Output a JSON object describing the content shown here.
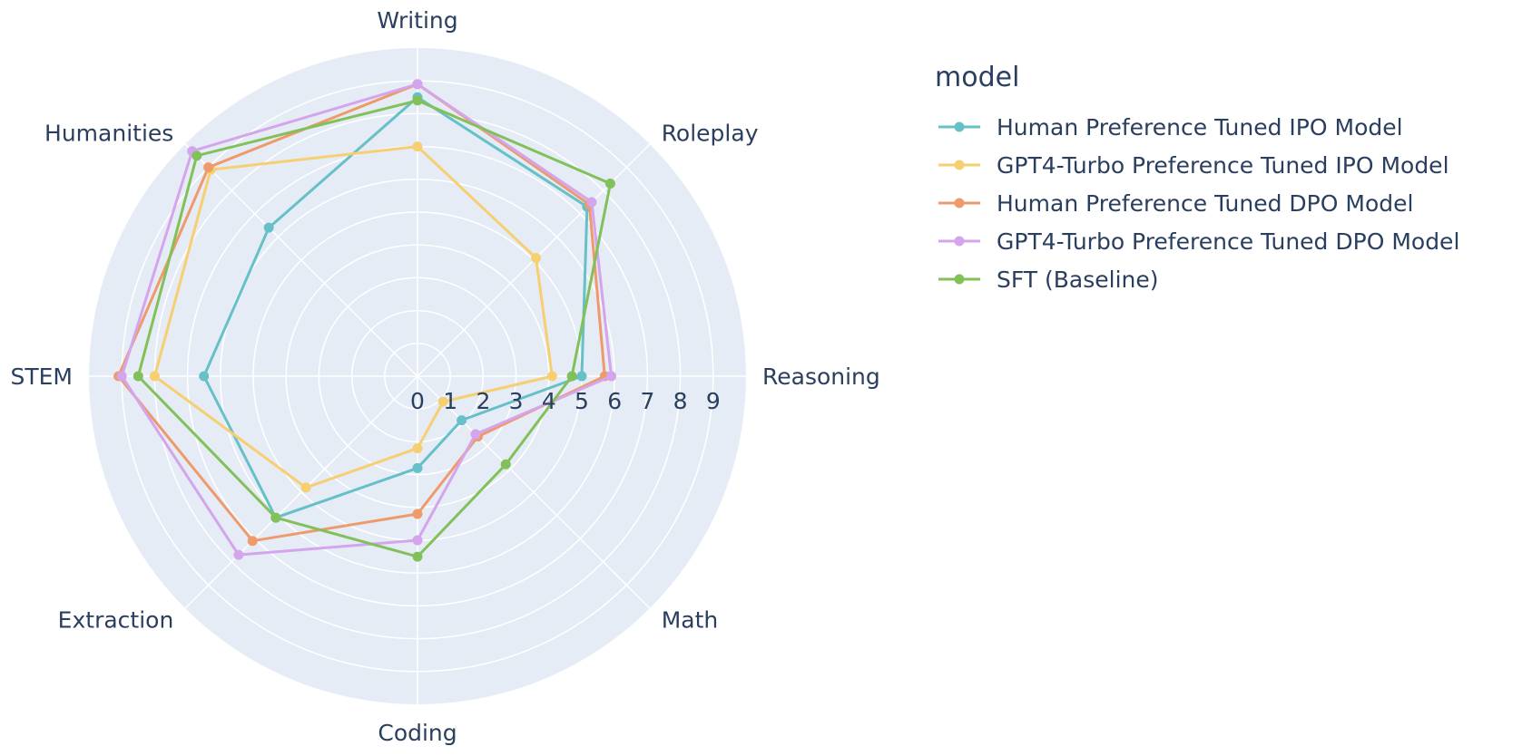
{
  "chart_data": {
    "type": "radar",
    "legend_title": "model",
    "legend_position": "right",
    "categories": [
      "Writing",
      "Roleplay",
      "Reasoning",
      "Math",
      "Coding",
      "Extraction",
      "STEM",
      "Humanities"
    ],
    "radial_range": [
      0,
      10
    ],
    "radial_ticks": [
      "0",
      "1",
      "2",
      "3",
      "4",
      "5",
      "6",
      "7",
      "8",
      "9"
    ],
    "grid": true,
    "series": [
      {
        "name": "Human Preference Tuned IPO Model",
        "color": "#66c0c7",
        "values": [
          8.5,
          7.3,
          5.0,
          1.9,
          2.8,
          6.1,
          6.5,
          6.4
        ]
      },
      {
        "name": "GPT4-Turbo Preference Tuned IPO Model",
        "color": "#f6cf71",
        "values": [
          7.0,
          5.1,
          4.1,
          1.1,
          2.2,
          4.8,
          8.0,
          8.9
        ]
      },
      {
        "name": "Human Preference Tuned DPO Model",
        "color": "#ee9a6b",
        "values": [
          8.9,
          7.4,
          5.7,
          2.6,
          4.2,
          7.1,
          9.1,
          9.0
        ]
      },
      {
        "name": "GPT4-Turbo Preference Tuned DPO Model",
        "color": "#d4a5ec",
        "values": [
          8.9,
          7.5,
          5.9,
          2.5,
          5.0,
          7.7,
          9.0,
          9.7
        ]
      },
      {
        "name": "SFT (Baseline)",
        "color": "#82c05a",
        "values": [
          8.4,
          8.3,
          4.7,
          3.8,
          5.5,
          6.1,
          8.5,
          9.5
        ]
      }
    ]
  }
}
